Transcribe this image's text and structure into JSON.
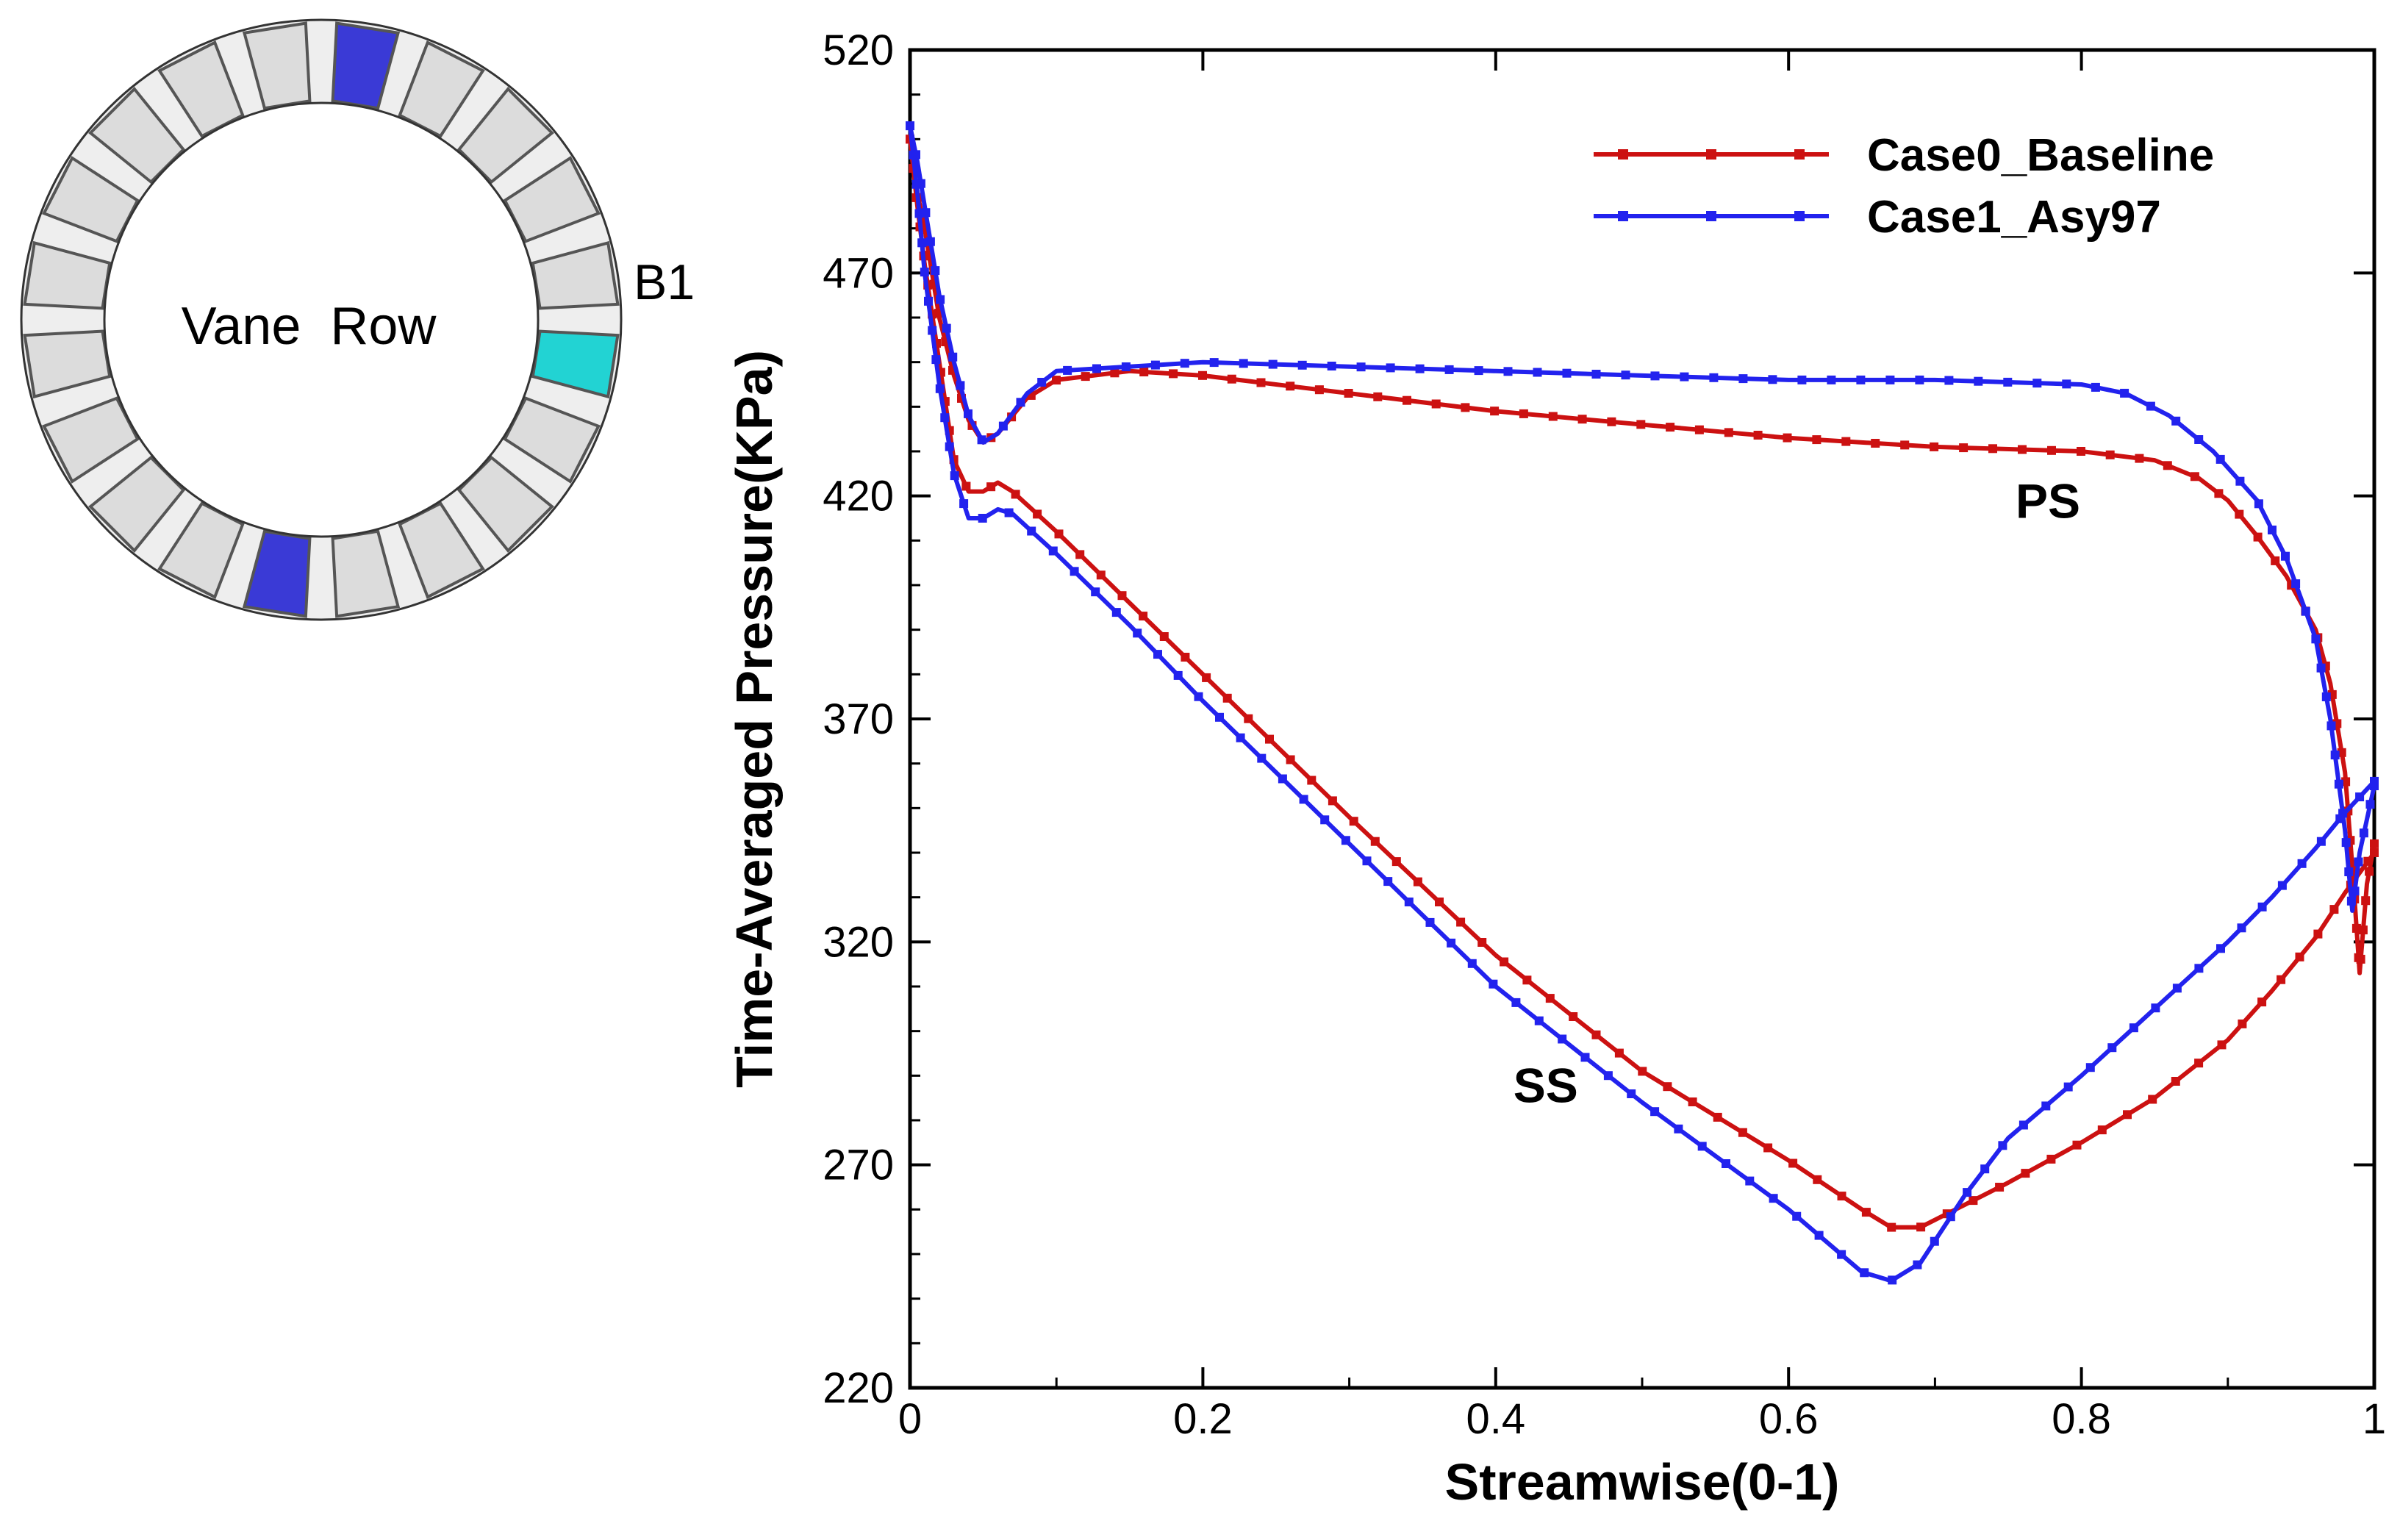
{
  "inset": {
    "center_label": "Vane  Row",
    "blade_label": "B1",
    "vane_count": 20,
    "colors": {
      "highlight_vane": "#3a3ad6",
      "b1_vane": "#22d3d3",
      "vane": "#dcdcdc",
      "vane_shadow": "#555555"
    }
  },
  "chart_data": {
    "type": "line",
    "title": "",
    "xlabel": "Streamwise(0-1)",
    "ylabel": "Time-Averaged Pressure(KPa)",
    "xlim": [
      0,
      1
    ],
    "ylim": [
      220,
      520
    ],
    "xticks": [
      "0",
      "0.2",
      "0.4",
      "0.6",
      "0.8",
      "1"
    ],
    "yticks": [
      "220",
      "270",
      "320",
      "370",
      "420",
      "470",
      "520"
    ],
    "grid": false,
    "legend_position": "top-right",
    "annotations": [
      {
        "text": "PS",
        "x": 0.755,
        "y": 419
      },
      {
        "text": "SS",
        "x": 0.412,
        "y": 288
      }
    ],
    "series": [
      {
        "name": "Case0_Baseline",
        "color": "#cc1111",
        "ps": [
          [
            0,
            500
          ],
          [
            0.005,
            488
          ],
          [
            0.01,
            480
          ],
          [
            0.015,
            470
          ],
          [
            0.02,
            460
          ],
          [
            0.03,
            447
          ],
          [
            0.04,
            437
          ],
          [
            0.05,
            432
          ],
          [
            0.06,
            434
          ],
          [
            0.08,
            442
          ],
          [
            0.1,
            446
          ],
          [
            0.15,
            448
          ],
          [
            0.2,
            447
          ],
          [
            0.3,
            443
          ],
          [
            0.4,
            439
          ],
          [
            0.5,
            436
          ],
          [
            0.6,
            433
          ],
          [
            0.7,
            431
          ],
          [
            0.8,
            430
          ],
          [
            0.85,
            428
          ],
          [
            0.88,
            424
          ],
          [
            0.9,
            419
          ],
          [
            0.92,
            411
          ],
          [
            0.94,
            402
          ],
          [
            0.96,
            390
          ],
          [
            0.97,
            378
          ],
          [
            0.98,
            358
          ],
          [
            0.985,
            337
          ],
          [
            0.99,
            313
          ],
          [
            0.995,
            333
          ],
          [
            1,
            342
          ]
        ],
        "ss": [
          [
            0,
            500
          ],
          [
            0.005,
            485
          ],
          [
            0.01,
            472
          ],
          [
            0.02,
            450
          ],
          [
            0.03,
            428
          ],
          [
            0.04,
            421
          ],
          [
            0.05,
            421
          ],
          [
            0.06,
            423
          ],
          [
            0.07,
            421
          ],
          [
            0.1,
            412
          ],
          [
            0.15,
            396
          ],
          [
            0.2,
            380
          ],
          [
            0.3,
            348
          ],
          [
            0.4,
            317
          ],
          [
            0.5,
            291
          ],
          [
            0.6,
            271
          ],
          [
            0.65,
            260
          ],
          [
            0.67,
            256
          ],
          [
            0.69,
            256
          ],
          [
            0.72,
            261
          ],
          [
            0.75,
            266
          ],
          [
            0.8,
            275
          ],
          [
            0.85,
            285
          ],
          [
            0.9,
            298
          ],
          [
            0.93,
            309
          ],
          [
            0.96,
            321
          ],
          [
            0.98,
            331
          ],
          [
            1,
            340
          ]
        ]
      },
      {
        "name": "Case1_Asy97",
        "color": "#2222ee",
        "ps": [
          [
            0,
            503
          ],
          [
            0.005,
            495
          ],
          [
            0.01,
            485
          ],
          [
            0.015,
            475
          ],
          [
            0.02,
            465
          ],
          [
            0.03,
            450
          ],
          [
            0.04,
            438
          ],
          [
            0.05,
            432
          ],
          [
            0.06,
            434
          ],
          [
            0.08,
            443
          ],
          [
            0.1,
            448
          ],
          [
            0.15,
            449
          ],
          [
            0.2,
            450
          ],
          [
            0.3,
            449
          ],
          [
            0.4,
            448
          ],
          [
            0.5,
            447
          ],
          [
            0.6,
            446
          ],
          [
            0.7,
            446
          ],
          [
            0.8,
            445
          ],
          [
            0.83,
            443
          ],
          [
            0.86,
            438
          ],
          [
            0.89,
            430
          ],
          [
            0.92,
            419
          ],
          [
            0.94,
            406
          ],
          [
            0.96,
            388
          ],
          [
            0.97,
            370
          ],
          [
            0.98,
            345
          ],
          [
            0.985,
            327
          ],
          [
            0.99,
            340
          ],
          [
            1,
            355
          ]
        ],
        "ss": [
          [
            0,
            503
          ],
          [
            0.005,
            488
          ],
          [
            0.01,
            470
          ],
          [
            0.02,
            445
          ],
          [
            0.03,
            425
          ],
          [
            0.04,
            415
          ],
          [
            0.05,
            415
          ],
          [
            0.06,
            417
          ],
          [
            0.07,
            416
          ],
          [
            0.1,
            407
          ],
          [
            0.15,
            391
          ],
          [
            0.2,
            374
          ],
          [
            0.3,
            342
          ],
          [
            0.4,
            310
          ],
          [
            0.5,
            284
          ],
          [
            0.6,
            260
          ],
          [
            0.65,
            246
          ],
          [
            0.67,
            244
          ],
          [
            0.69,
            248
          ],
          [
            0.72,
            263
          ],
          [
            0.75,
            276
          ],
          [
            0.8,
            290
          ],
          [
            0.85,
            305
          ],
          [
            0.9,
            320
          ],
          [
            0.93,
            330
          ],
          [
            0.96,
            341
          ],
          [
            0.98,
            349
          ],
          [
            1,
            356
          ]
        ]
      }
    ]
  }
}
